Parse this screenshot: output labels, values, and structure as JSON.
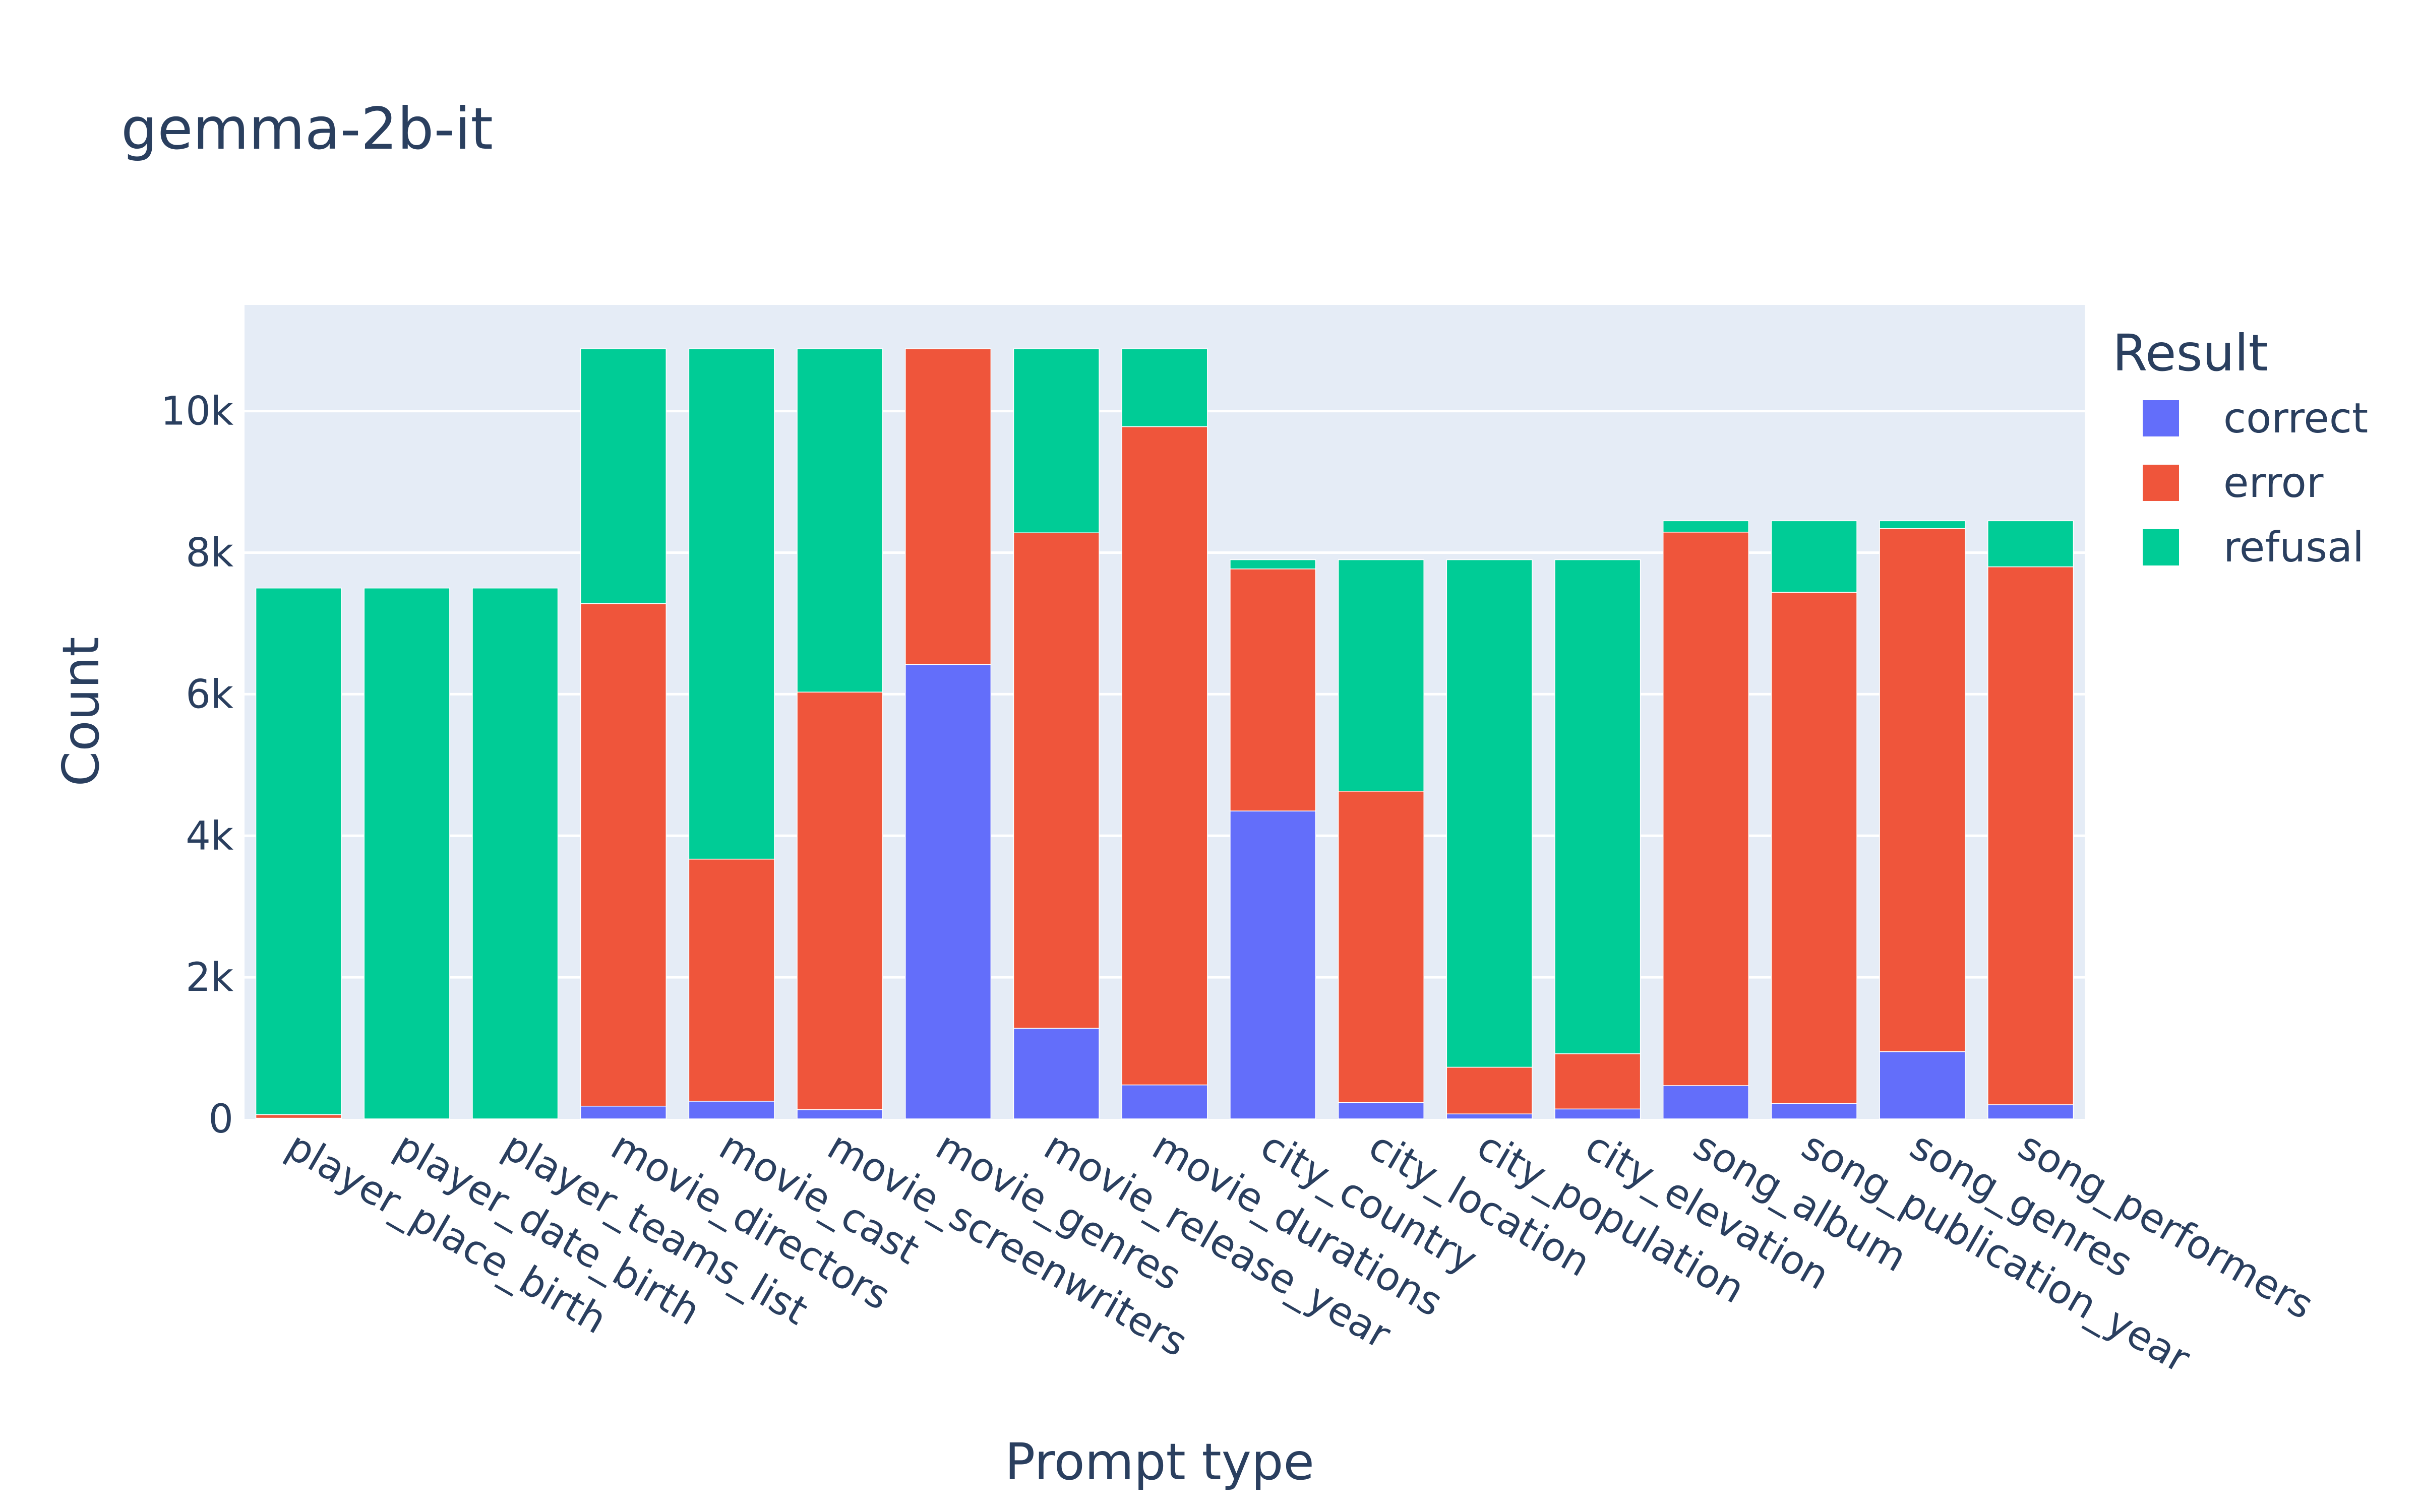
{
  "chart_data": {
    "type": "bar",
    "stacked": true,
    "title": "gemma-2b-it",
    "xlabel": "Prompt type",
    "ylabel": "Count",
    "ylim": [
      0,
      11500
    ],
    "yticks": [
      0,
      2000,
      4000,
      6000,
      8000,
      10000
    ],
    "ytick_labels": [
      "0",
      "2k",
      "4k",
      "6k",
      "8k",
      "10k"
    ],
    "grid": true,
    "legend_title": "Result",
    "legend_position": "top-right",
    "categories": [
      "player_place_birth",
      "player_date_birth",
      "player_teams_list",
      "movie_directors",
      "movie_cast",
      "movie_screenwriters",
      "movie_genres",
      "movie_release_year",
      "movie_durations",
      "city_country",
      "city_location",
      "city_population",
      "city_elevation",
      "song_album",
      "song_publication_year",
      "song_genres",
      "song_performers"
    ],
    "series": [
      {
        "name": "correct",
        "color": "#636efa",
        "values": [
          10,
          0,
          0,
          180,
          250,
          130,
          6420,
          1280,
          480,
          4350,
          230,
          70,
          140,
          470,
          220,
          950,
          200
        ]
      },
      {
        "name": "error",
        "color": "#ef553b",
        "values": [
          50,
          0,
          0,
          7100,
          3420,
          5900,
          4460,
          7000,
          9300,
          3420,
          4400,
          660,
          780,
          7820,
          7220,
          7390,
          7600
        ]
      },
      {
        "name": "refusal",
        "color": "#00cc96",
        "values": [
          7440,
          7500,
          7500,
          3600,
          7210,
          4850,
          0,
          2600,
          1100,
          130,
          3270,
          7170,
          6980,
          160,
          1010,
          110,
          650
        ]
      }
    ]
  }
}
